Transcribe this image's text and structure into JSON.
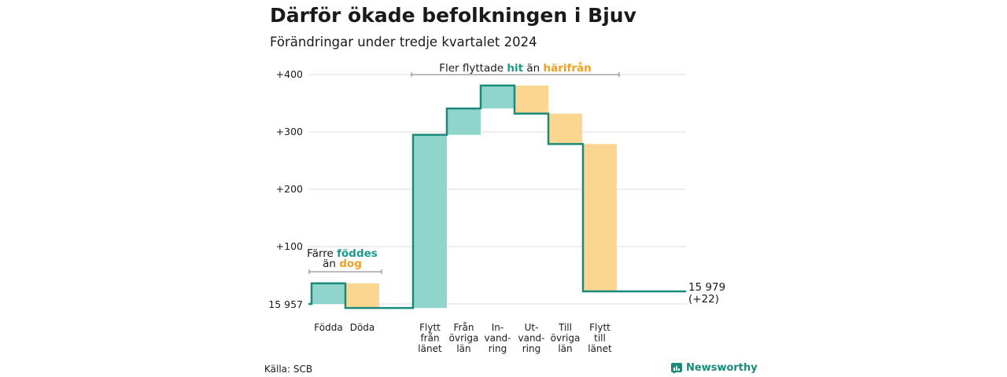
{
  "title": "Därför ökade befolkningen i Bjuv",
  "subtitle": "Förändringar under tredje kvartalet 2024",
  "source": "Källa: SCB",
  "brand": "Newsworthy",
  "colors": {
    "increase": "#8fd5cc",
    "decrease": "#fad691",
    "line": "#1a8a7a",
    "teal_text": "#1a9a8a",
    "orange_text": "#f0a020",
    "grid": "#dddddd"
  },
  "annotations": {
    "births": {
      "line1": "Färre",
      "highlight1": "föddes",
      "line2": "än",
      "highlight2": "dog"
    },
    "migration": {
      "text1": "Fler flyttade",
      "highlight1": "hit",
      "text2": "än",
      "highlight2": "härifrån"
    }
  },
  "chart_data": {
    "type": "waterfall",
    "baseline_label": "15 957",
    "end_label": "15 979",
    "end_change": "(+22)",
    "y_ticks": [
      {
        "value": 100,
        "label": "+100"
      },
      {
        "value": 200,
        "label": "+200"
      },
      {
        "value": 300,
        "label": "+300"
      },
      {
        "value": 400,
        "label": "+400"
      }
    ],
    "ylim": [
      0,
      400
    ],
    "steps": [
      {
        "label": [
          "Födda"
        ],
        "change": 36,
        "kind": "increase"
      },
      {
        "label": [
          "Döda"
        ],
        "change": -43,
        "kind": "decrease"
      },
      {
        "label": [
          "Flytt",
          "från",
          "länet"
        ],
        "change": 302,
        "kind": "increase"
      },
      {
        "label": [
          "Från",
          "övriga",
          "län"
        ],
        "change": 46,
        "kind": "increase"
      },
      {
        "label": [
          "In-",
          "vand-",
          "ring"
        ],
        "change": 40,
        "kind": "increase"
      },
      {
        "label": [
          "Ut-",
          "vand-",
          "ring"
        ],
        "change": -49,
        "kind": "decrease"
      },
      {
        "label": [
          "Till",
          "övriga",
          "län"
        ],
        "change": -53,
        "kind": "decrease"
      },
      {
        "label": [
          "Flytt",
          "till",
          "länet"
        ],
        "change": -257,
        "kind": "decrease"
      }
    ],
    "net_change": 22
  }
}
